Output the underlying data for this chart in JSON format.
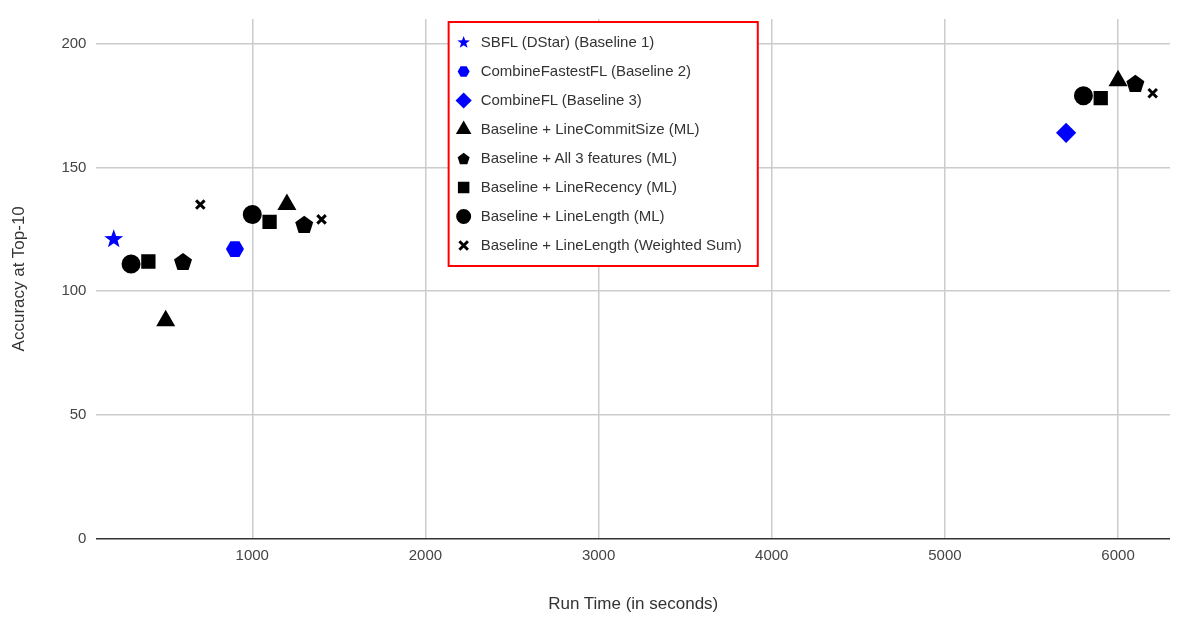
{
  "chart_data": {
    "type": "scatter",
    "xlabel": "Run Time (in seconds)",
    "ylabel": "Accuracy at Top-10",
    "xlim": [
      100,
      6300
    ],
    "xticks": [
      1000,
      2000,
      3000,
      4000,
      5000,
      6000
    ],
    "ylim": [
      0,
      210
    ],
    "yticks": [
      0,
      50,
      100,
      150,
      200
    ],
    "grid": true,
    "legend": "top",
    "series": [
      {
        "name": "SBFL (DStar) (Baseline 1)",
        "color": "#0000ff",
        "marker": "star",
        "x": [
          200
        ],
        "values": [
          121
        ]
      },
      {
        "name": "CombineFastestFL (Baseline 2)",
        "color": "#0000ff",
        "x": [
          900
        ],
        "values": [
          117
        ]
      },
      {
        "name": "CombineFL (Baseline 3)",
        "color": "#0000ff",
        "marker": "diamond",
        "x": [
          5700
        ],
        "values": [
          164
        ]
      },
      {
        "name": "Baseline + LineCommitSize (ML)",
        "color": "#000000",
        "marker": "triangle",
        "x": [
          500,
          1200,
          6000
        ],
        "values": [
          88,
          135,
          185
        ]
      },
      {
        "name": "Baseline + All 3 features (ML)",
        "color": "#000000",
        "x": [
          600,
          1300,
          6100
        ],
        "values": [
          112,
          127,
          184
        ]
      },
      {
        "name": "Baseline + LineRecency (ML)",
        "color": "#000000",
        "marker": "square",
        "x": [
          400,
          1100,
          5900
        ],
        "values": [
          112,
          128,
          178
        ]
      },
      {
        "name": "Baseline + LineLength (ML)",
        "color": "#000000",
        "marker": "circle",
        "x": [
          300,
          1000,
          5800
        ],
        "values": [
          111,
          131,
          179
        ]
      },
      {
        "name": "Baseline + LineLength (Weighted Sum)",
        "color": "#000000",
        "marker": "cross",
        "x": [
          700,
          1400,
          6200
        ],
        "values": [
          135,
          129,
          180
        ]
      }
    ]
  }
}
